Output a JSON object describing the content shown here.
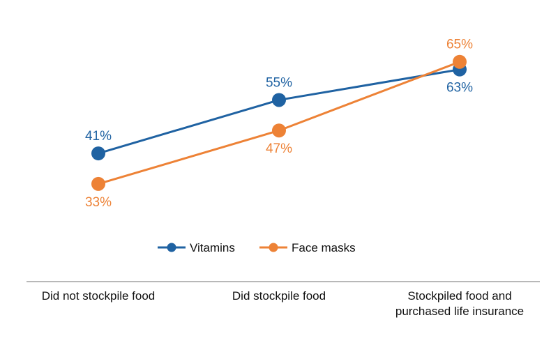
{
  "chart_data": {
    "type": "line",
    "categories": [
      [
        "Did not stockpile food"
      ],
      [
        "Did stockpile food"
      ],
      [
        "Stockpiled food and",
        "purchased life insurance"
      ]
    ],
    "ylim": [
      20,
      75
    ],
    "grid": false,
    "legend_position": "bottom",
    "series": [
      {
        "name": "Vitamins",
        "color": "#1f62a2",
        "values": [
          41,
          55,
          63
        ],
        "labels": [
          "41%",
          "55%",
          "63%"
        ],
        "label_positions": [
          "above",
          "above",
          "below"
        ]
      },
      {
        "name": "Face masks",
        "color": "#ed8236",
        "values": [
          33,
          47,
          65
        ],
        "labels": [
          "33%",
          "47%",
          "65%"
        ],
        "label_positions": [
          "below",
          "below",
          "above"
        ]
      }
    ]
  }
}
